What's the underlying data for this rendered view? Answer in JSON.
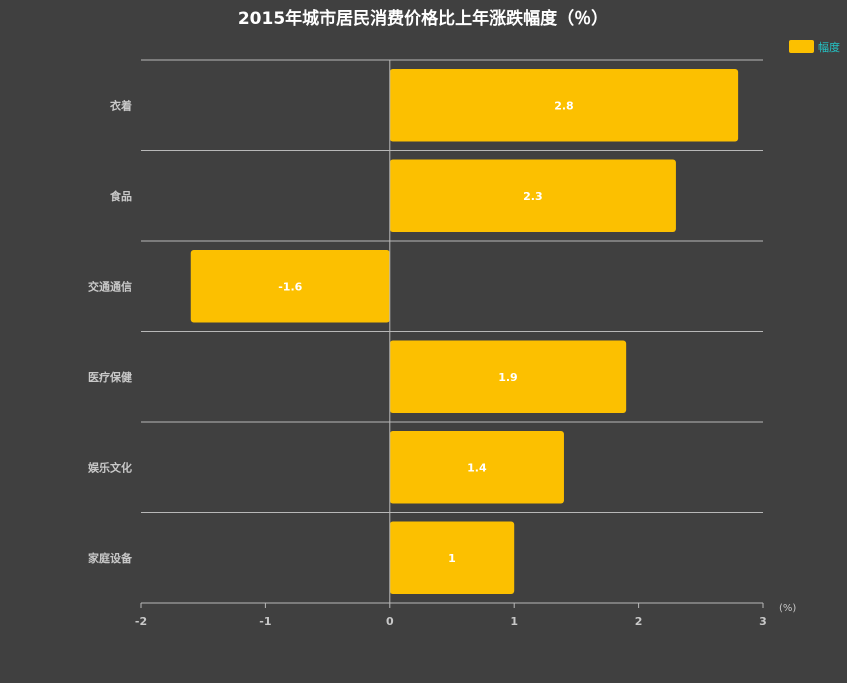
{
  "colors": {
    "background": "#404040",
    "bar": "#fcc000",
    "grid": "#b8b8b8",
    "legend_text": "#23c6c8"
  },
  "chart_data": {
    "type": "bar",
    "orientation": "horizontal",
    "title": "2015年城市居民消费价格比上年涨跌幅度（％）",
    "categories": [
      "衣着",
      "食品",
      "交通通信",
      "医疗保健",
      "娱乐文化",
      "家庭设备"
    ],
    "series": [
      {
        "name": "幅度",
        "values": [
          2.8,
          2.3,
          -1.6,
          1.9,
          1.4,
          1
        ]
      }
    ],
    "value_labels": [
      "2.8",
      "2.3",
      "-1.6",
      "1.9",
      "1.4",
      "1"
    ],
    "xlim": [
      -2,
      3
    ],
    "xticks": [
      -2,
      -1,
      0,
      1,
      2,
      3
    ],
    "xtick_labels": [
      "-2",
      "-1",
      "0",
      "1",
      "2",
      "3"
    ],
    "xunit": "(%)",
    "legend_position": "top-right",
    "grid": true
  }
}
